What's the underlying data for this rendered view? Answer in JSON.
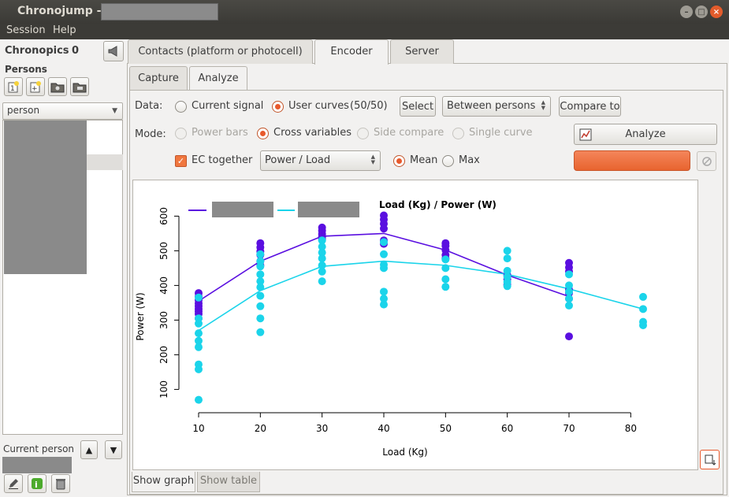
{
  "window": {
    "title": "Chronojump -"
  },
  "menu": {
    "items": [
      "Session",
      "Help"
    ]
  },
  "left": {
    "chronopics_label": "Chronopics",
    "chronopics_count": "0",
    "persons_label": "Persons",
    "person_combo_value": "person",
    "current_person_label": "Current person"
  },
  "tabs": {
    "main": [
      "Contacts (platform or photocell)",
      "Encoder",
      "Server"
    ],
    "sub": [
      "Capture",
      "Analyze"
    ]
  },
  "analyze": {
    "data_label": "Data:",
    "current_signal": "Current signal",
    "user_curves": "User curves",
    "curves_count": "(50/50)",
    "select_button": "Select",
    "between_combo": "Between persons",
    "compare_button": "Compare to",
    "mode_label": "Mode:",
    "modes": [
      "Power bars",
      "Cross variables",
      "Side compare",
      "Single curve"
    ],
    "analyze_button": "Analyze",
    "ec_together": "EC together",
    "variables_combo": "Power / Load",
    "mean": "Mean",
    "max": "Max"
  },
  "bottom_tabs": [
    "Show graph",
    "Show table"
  ],
  "colors": {
    "accent": "#e8592c",
    "series1": "#5a0fe0",
    "series2": "#1bd4ea"
  },
  "chart_data": {
    "type": "scatter",
    "title": "Load (Kg) / Power (W)",
    "xlabel": "Load (Kg)",
    "ylabel": "Power (W)",
    "xlim": [
      10,
      82
    ],
    "ylim": [
      60,
      610
    ],
    "xticks": [
      10,
      20,
      30,
      40,
      50,
      60,
      70,
      80
    ],
    "yticks": [
      100,
      200,
      300,
      400,
      500,
      600
    ],
    "legend_position": "top-left",
    "series": [
      {
        "color": "#5a0fe0",
        "points": [
          [
            10,
            378
          ],
          [
            10,
            368
          ],
          [
            10,
            358
          ],
          [
            10,
            348
          ],
          [
            10,
            340
          ],
          [
            10,
            332
          ],
          [
            10,
            325
          ],
          [
            10,
            318
          ],
          [
            10,
            305
          ],
          [
            20,
            522
          ],
          [
            20,
            510
          ],
          [
            20,
            498
          ],
          [
            20,
            488
          ],
          [
            20,
            470
          ],
          [
            20,
            458
          ],
          [
            30,
            567
          ],
          [
            30,
            558
          ],
          [
            30,
            548
          ],
          [
            30,
            540
          ],
          [
            30,
            533
          ],
          [
            40,
            602
          ],
          [
            40,
            590
          ],
          [
            40,
            578
          ],
          [
            40,
            564
          ],
          [
            40,
            530
          ],
          [
            40,
            520
          ],
          [
            50,
            522
          ],
          [
            50,
            514
          ],
          [
            50,
            502
          ],
          [
            50,
            488
          ],
          [
            50,
            478
          ],
          [
            60,
            430
          ],
          [
            60,
            418
          ],
          [
            60,
            402
          ],
          [
            70,
            465
          ],
          [
            70,
            452
          ],
          [
            70,
            440
          ],
          [
            70,
            388
          ],
          [
            70,
            378
          ],
          [
            70,
            362
          ],
          [
            70,
            253
          ]
        ],
        "mean_line": [
          [
            10,
            355
          ],
          [
            20,
            470
          ],
          [
            30,
            542
          ],
          [
            40,
            550
          ],
          [
            50,
            502
          ],
          [
            60,
            430
          ],
          [
            70,
            368
          ]
        ]
      },
      {
        "color": "#1bd4ea",
        "points": [
          [
            10,
            365
          ],
          [
            10,
            305
          ],
          [
            10,
            290
          ],
          [
            10,
            262
          ],
          [
            10,
            240
          ],
          [
            10,
            222
          ],
          [
            10,
            172
          ],
          [
            10,
            158
          ],
          [
            10,
            70
          ],
          [
            20,
            490
          ],
          [
            20,
            470
          ],
          [
            20,
            455
          ],
          [
            20,
            432
          ],
          [
            20,
            412
          ],
          [
            20,
            395
          ],
          [
            20,
            370
          ],
          [
            20,
            340
          ],
          [
            20,
            305
          ],
          [
            20,
            265
          ],
          [
            30,
            530
          ],
          [
            30,
            512
          ],
          [
            30,
            495
          ],
          [
            30,
            478
          ],
          [
            30,
            458
          ],
          [
            30,
            440
          ],
          [
            30,
            412
          ],
          [
            40,
            525
          ],
          [
            40,
            490
          ],
          [
            40,
            460
          ],
          [
            40,
            450
          ],
          [
            40,
            382
          ],
          [
            40,
            362
          ],
          [
            40,
            345
          ],
          [
            50,
            475
          ],
          [
            50,
            450
          ],
          [
            50,
            418
          ],
          [
            50,
            396
          ],
          [
            60,
            500
          ],
          [
            60,
            478
          ],
          [
            60,
            442
          ],
          [
            60,
            425
          ],
          [
            60,
            410
          ],
          [
            60,
            398
          ],
          [
            70,
            432
          ],
          [
            70,
            400
          ],
          [
            70,
            382
          ],
          [
            70,
            362
          ],
          [
            70,
            342
          ],
          [
            82,
            367
          ],
          [
            82,
            332
          ],
          [
            82,
            295
          ],
          [
            82,
            285
          ]
        ],
        "mean_line": [
          [
            10,
            270
          ],
          [
            20,
            385
          ],
          [
            30,
            455
          ],
          [
            40,
            470
          ],
          [
            50,
            458
          ],
          [
            60,
            432
          ],
          [
            70,
            390
          ],
          [
            82,
            332
          ]
        ]
      }
    ]
  }
}
